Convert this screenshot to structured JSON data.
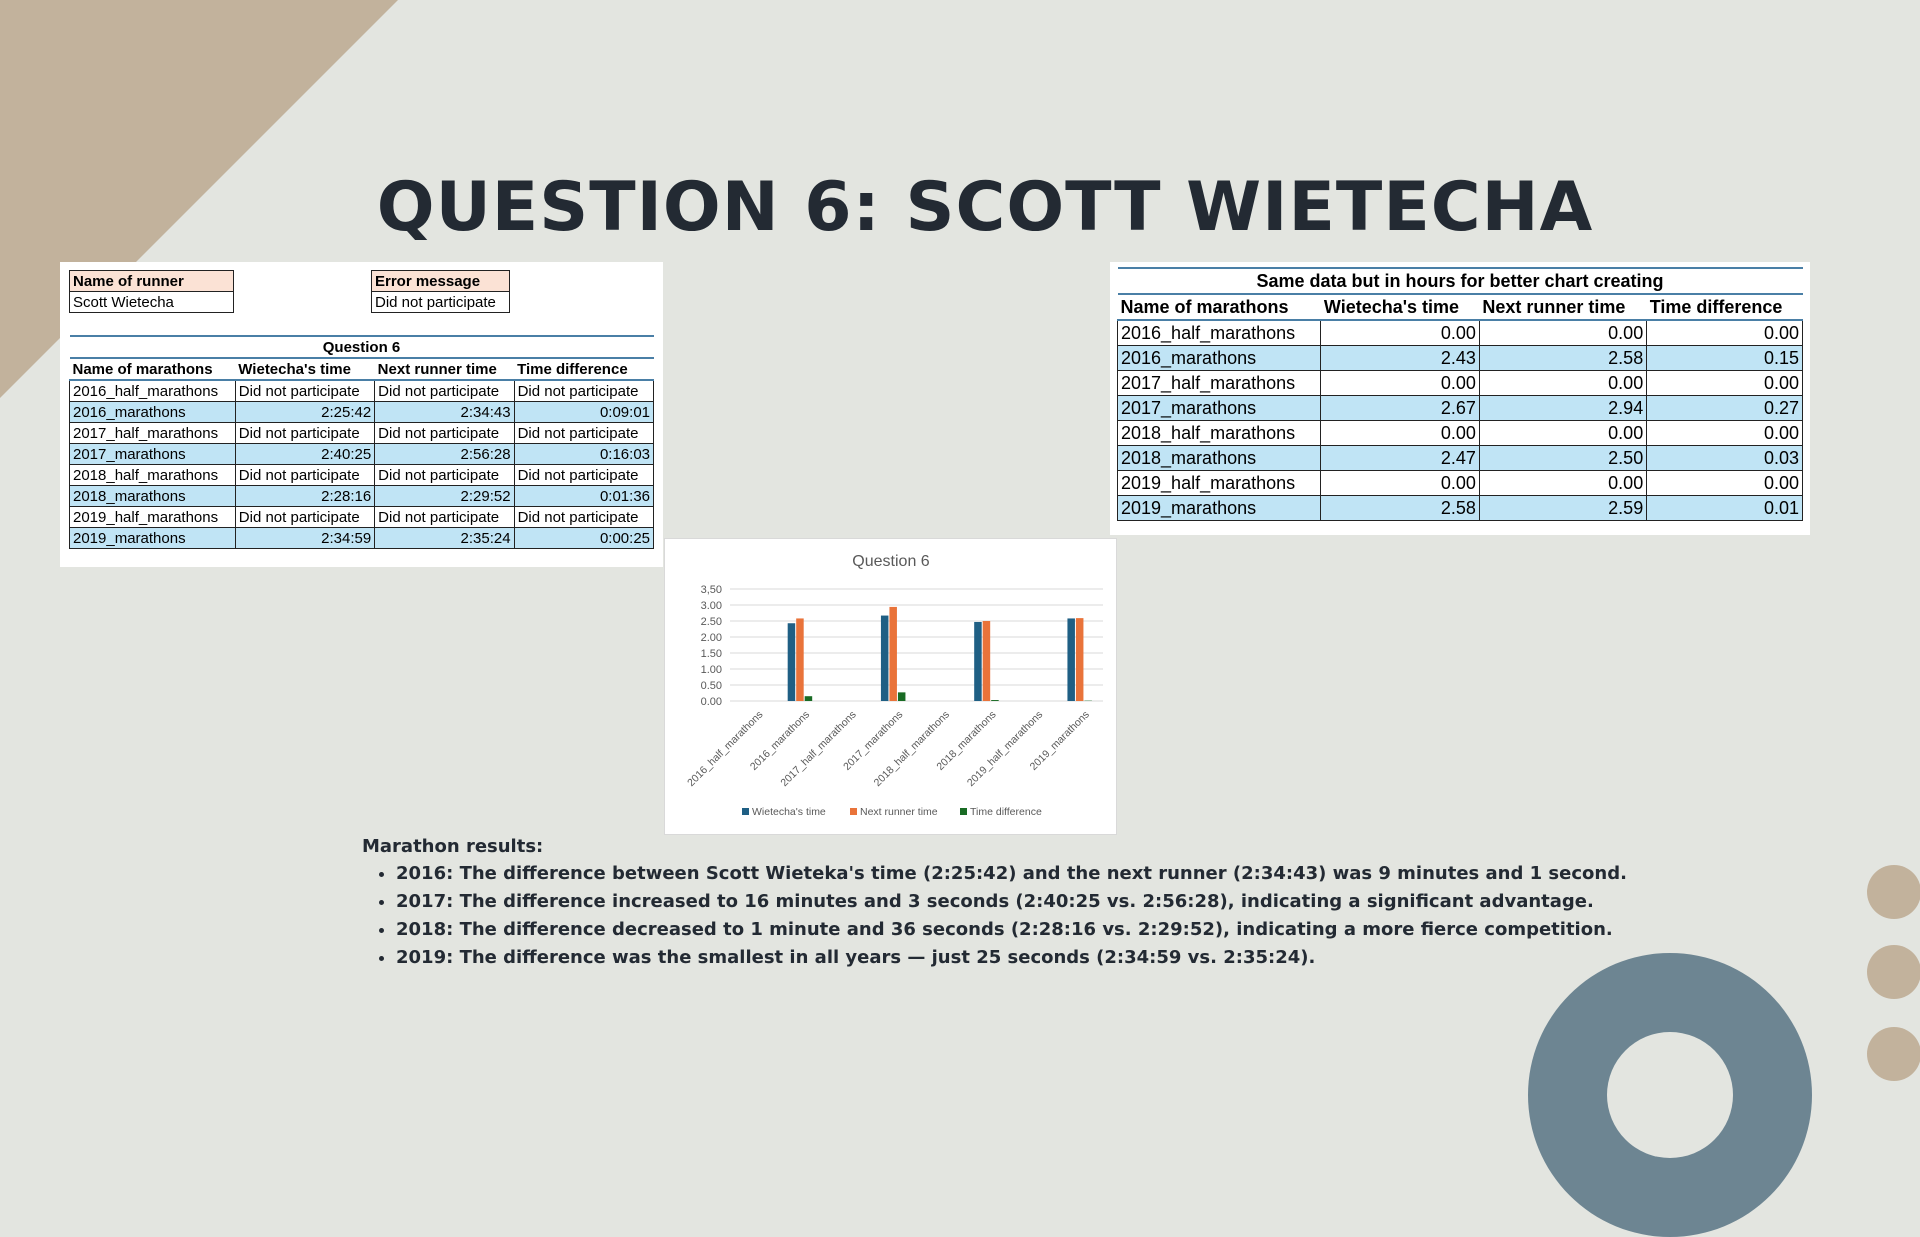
{
  "slide": {
    "title": "QUESTION 6: SCOTT WIETECHA",
    "colors": {
      "background": "#e3e5e0",
      "corner": "#c2b29c",
      "arch": "#6d8592",
      "title": "#232a33"
    }
  },
  "sheet1": {
    "runner_header": "Name of runner",
    "runner_value": "Scott Wietecha",
    "error_header": "Error message",
    "error_value": "Did not participate",
    "caption": "Question 6",
    "headers": [
      "Name of marathons",
      "Wietecha's time",
      "Next runner time",
      "Time difference"
    ],
    "rows": [
      [
        "2016_half_marathons",
        "Did not participate",
        "Did not participate",
        "Did not participate"
      ],
      [
        "2016_marathons",
        "2:25:42",
        "2:34:43",
        "0:09:01"
      ],
      [
        "2017_half_marathons",
        "Did not participate",
        "Did not participate",
        "Did not participate"
      ],
      [
        "2017_marathons",
        "2:40:25",
        "2:56:28",
        "0:16:03"
      ],
      [
        "2018_half_marathons",
        "Did not participate",
        "Did not participate",
        "Did not participate"
      ],
      [
        "2018_marathons",
        "2:28:16",
        "2:29:52",
        "0:01:36"
      ],
      [
        "2019_half_marathons",
        "Did not participate",
        "Did not participate",
        "Did not participate"
      ],
      [
        "2019_marathons",
        "2:34:59",
        "2:35:24",
        "0:00:25"
      ]
    ]
  },
  "sheet2": {
    "caption": "Same data but in hours for better chart creating",
    "headers": [
      "Name of marathons",
      "Wietecha's time",
      "Next runner time",
      "Time difference"
    ],
    "rows": [
      [
        "2016_half_marathons",
        "0.00",
        "0.00",
        "0.00"
      ],
      [
        "2016_marathons",
        "2.43",
        "2.58",
        "0.15"
      ],
      [
        "2017_half_marathons",
        "0.00",
        "0.00",
        "0.00"
      ],
      [
        "2017_marathons",
        "2.67",
        "2.94",
        "0.27"
      ],
      [
        "2018_half_marathons",
        "0.00",
        "0.00",
        "0.00"
      ],
      [
        "2018_marathons",
        "2.47",
        "2.50",
        "0.03"
      ],
      [
        "2019_half_marathons",
        "0.00",
        "0.00",
        "0.00"
      ],
      [
        "2019_marathons",
        "2.58",
        "2.59",
        "0.01"
      ]
    ]
  },
  "chart_data": {
    "type": "bar",
    "title": "Question 6",
    "categories": [
      "2016_half_marathons",
      "2016_marathons",
      "2017_half_marathons",
      "2017_marathons",
      "2018_half_marathons",
      "2018_marathons",
      "2019_half_marathons",
      "2019_marathons"
    ],
    "series": [
      {
        "name": "Wietecha's time",
        "color": "#1f5f84",
        "values": [
          0,
          2.43,
          0,
          2.67,
          0,
          2.47,
          0,
          2.58
        ]
      },
      {
        "name": "Next runner time",
        "color": "#e9733a",
        "values": [
          0,
          2.58,
          0,
          2.94,
          0,
          2.5,
          0,
          2.59
        ]
      },
      {
        "name": "Time difference",
        "color": "#196b24",
        "values": [
          0,
          0.15,
          0,
          0.27,
          0,
          0.03,
          0,
          0.01
        ]
      }
    ],
    "yticks": [
      "0.00",
      "0.50",
      "1.00",
      "1.50",
      "2.00",
      "2.50",
      "3.00",
      "3,50"
    ],
    "ylim": [
      0,
      3.5
    ],
    "xlabel": "",
    "ylabel": "",
    "legend": "bottom",
    "grid": true
  },
  "notes": {
    "heading": "Marathon results:",
    "items": [
      "2016: The difference between Scott Wieteka's time (2:25:42) and the next runner (2:34:43) was 9 minutes and 1 second.",
      "2017: The difference increased to 16 minutes and 3 seconds (2:40:25 vs. 2:56:28), indicating a significant advantage.",
      "2018: The difference decreased to 1 minute and 36 seconds (2:28:16 vs. 2:29:52), indicating a more fierce competition.",
      "2019: The difference was the smallest in all years — just 25 seconds (2:34:59 vs. 2:35:24)."
    ]
  }
}
